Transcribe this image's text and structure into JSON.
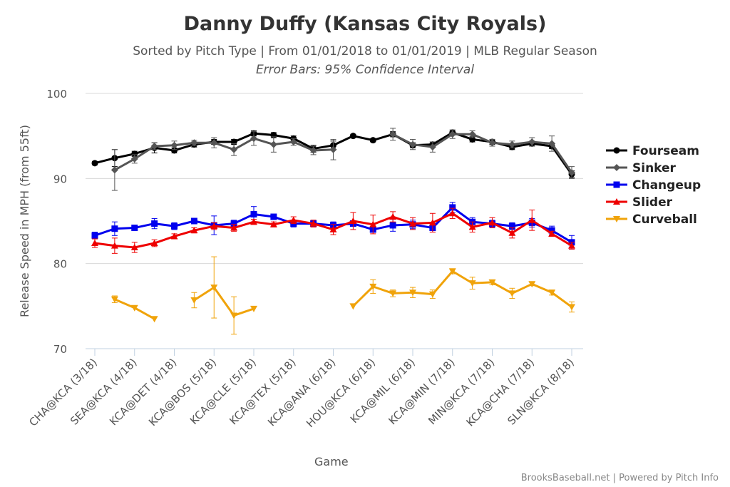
{
  "chart_data": {
    "type": "line",
    "title": "Danny Duffy (Kansas City Royals)",
    "subtitle": "Sorted by Pitch Type | From 01/01/2018 to 01/01/2019 | MLB Regular Season",
    "subtitle2": "Error Bars: 95% Confidence Interval",
    "xlabel": "Game",
    "ylabel": "Release Speed in MPH (from 55ft)",
    "ylim": [
      70,
      100
    ],
    "yticks": [
      70,
      80,
      90,
      100
    ],
    "grid": true,
    "legend_position": "right",
    "credits": "BrooksBaseball.net | Powered by Pitch Info",
    "tick_labels": [
      "CHA@KCA (3/18)",
      "SEA@KCA (4/18)",
      "KCA@DET (4/18)",
      "KCA@BOS (5/18)",
      "KCA@CLE (5/18)",
      "KCA@TEX (5/18)",
      "KCA@ANA (6/18)",
      "HOU@KCA (6/18)",
      "KCA@MIL (6/18)",
      "KCA@MIN (7/18)",
      "MIN@KCA (7/18)",
      "KCA@CHA (7/18)",
      "SLN@KCA (8/18)"
    ],
    "series": [
      {
        "name": "Fourseam",
        "color": "#000000",
        "marker": "circle",
        "values": [
          91.8,
          92.4,
          92.9,
          93.6,
          93.3,
          94.0,
          94.3,
          94.3,
          95.3,
          95.1,
          94.7,
          93.5,
          93.9,
          95.0,
          94.5,
          95.2,
          93.9,
          94.0,
          95.4,
          94.6,
          94.3,
          93.7,
          94.1,
          93.8,
          90.5
        ],
        "errors": [
          0.2,
          1.0,
          0.3,
          0.6,
          0.3,
          0.3,
          0.3,
          0.3,
          0.3,
          0.3,
          0.3,
          0.4,
          0.5,
          0.2,
          0.2,
          0.3,
          0.3,
          0.3,
          0.3,
          0.3,
          0.3,
          0.3,
          0.3,
          0.3,
          0.4
        ]
      },
      {
        "name": "Sinker",
        "color": "#555555",
        "marker": "diamond",
        "values": [
          null,
          91.0,
          92.3,
          93.8,
          93.9,
          94.2,
          94.2,
          93.4,
          94.7,
          94.0,
          94.3,
          93.3,
          93.4,
          null,
          null,
          95.2,
          94.0,
          93.7,
          95.2,
          95.2,
          94.2,
          94.0,
          94.3,
          94.1,
          90.7
        ],
        "errors": [
          null,
          2.4,
          0.5,
          0.4,
          0.5,
          0.3,
          0.6,
          0.7,
          0.8,
          0.9,
          0.4,
          0.5,
          1.2,
          null,
          null,
          0.7,
          0.6,
          0.6,
          0.5,
          0.4,
          0.4,
          0.4,
          0.5,
          0.9,
          0.7
        ]
      },
      {
        "name": "Changeup",
        "color": "#0000ee",
        "marker": "square",
        "values": [
          83.3,
          84.1,
          84.2,
          84.7,
          84.4,
          85.0,
          84.5,
          84.7,
          85.8,
          85.5,
          84.7,
          84.7,
          84.5,
          84.7,
          84.0,
          84.5,
          84.6,
          84.2,
          86.6,
          84.9,
          84.7,
          84.4,
          84.8,
          83.9,
          82.5
        ],
        "errors": [
          0.4,
          0.8,
          0.3,
          0.6,
          0.4,
          0.3,
          1.1,
          0.4,
          0.9,
          0.3,
          0.4,
          0.4,
          0.4,
          0.3,
          0.3,
          0.7,
          0.5,
          0.5,
          0.6,
          0.5,
          0.4,
          0.4,
          0.5,
          0.5,
          0.8
        ]
      },
      {
        "name": "Slider",
        "color": "#ee0000",
        "marker": "triangle",
        "values": [
          82.4,
          82.1,
          81.9,
          82.4,
          83.2,
          83.9,
          84.4,
          84.2,
          84.9,
          84.6,
          85.1,
          84.7,
          84.0,
          85.0,
          84.6,
          85.5,
          84.7,
          84.8,
          85.9,
          84.3,
          84.8,
          83.6,
          85.1,
          83.5,
          82.1
        ],
        "errors": [
          0.5,
          0.9,
          0.6,
          0.4,
          0.3,
          0.3,
          0.4,
          0.4,
          0.3,
          0.3,
          0.4,
          0.4,
          0.6,
          1.0,
          1.1,
          0.6,
          0.7,
          1.1,
          0.6,
          0.6,
          0.6,
          0.6,
          1.2,
          0.3,
          0.4
        ]
      },
      {
        "name": "Curveball",
        "color": "#f0a30a",
        "marker": "triangle-down",
        "values": [
          null,
          75.8,
          74.8,
          73.5,
          null,
          75.7,
          77.2,
          73.9,
          74.7,
          null,
          null,
          null,
          null,
          75.0,
          77.3,
          76.5,
          76.6,
          76.4,
          79.1,
          77.7,
          77.8,
          76.5,
          77.6,
          76.6,
          74.9
        ],
        "errors": [
          null,
          0.4,
          null,
          null,
          null,
          0.9,
          3.6,
          2.2,
          null,
          null,
          null,
          null,
          null,
          null,
          0.8,
          0.4,
          0.6,
          0.5,
          0.3,
          0.7,
          0.3,
          0.6,
          0.2,
          0.3,
          0.6
        ]
      }
    ]
  }
}
